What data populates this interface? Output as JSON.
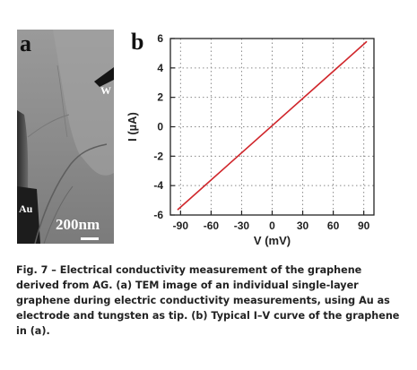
{
  "panel_a": {
    "label": "a",
    "tip_label": "W",
    "electrode_label": "Au",
    "scale_label": "200nm"
  },
  "panel_b": {
    "label": "b"
  },
  "chart_data": {
    "type": "line",
    "xlabel": "V (mV)",
    "ylabel": "I (µA)",
    "xlim": [
      -100,
      100
    ],
    "ylim": [
      -6,
      6
    ],
    "xticks": [
      "-90",
      "-60",
      "-30",
      "0",
      "30",
      "60",
      "90"
    ],
    "yticks": [
      "6",
      "4",
      "2",
      "0",
      "-2",
      "-4",
      "-6"
    ],
    "grid": true,
    "colors": {
      "line": "#d0262b"
    },
    "series": [
      {
        "x": [
          -93,
          93
        ],
        "y": [
          -5.65,
          5.8
        ]
      }
    ]
  },
  "caption": {
    "text": "Fig. 7 – Electrical conductivity measurement of the graphene derived from AG. (a) TEM image of an individual single-layer graphene during electric conductivity measurements, using Au as electrode and tungsten as tip. (b) Typical I–V curve of the graphene in (a)."
  }
}
